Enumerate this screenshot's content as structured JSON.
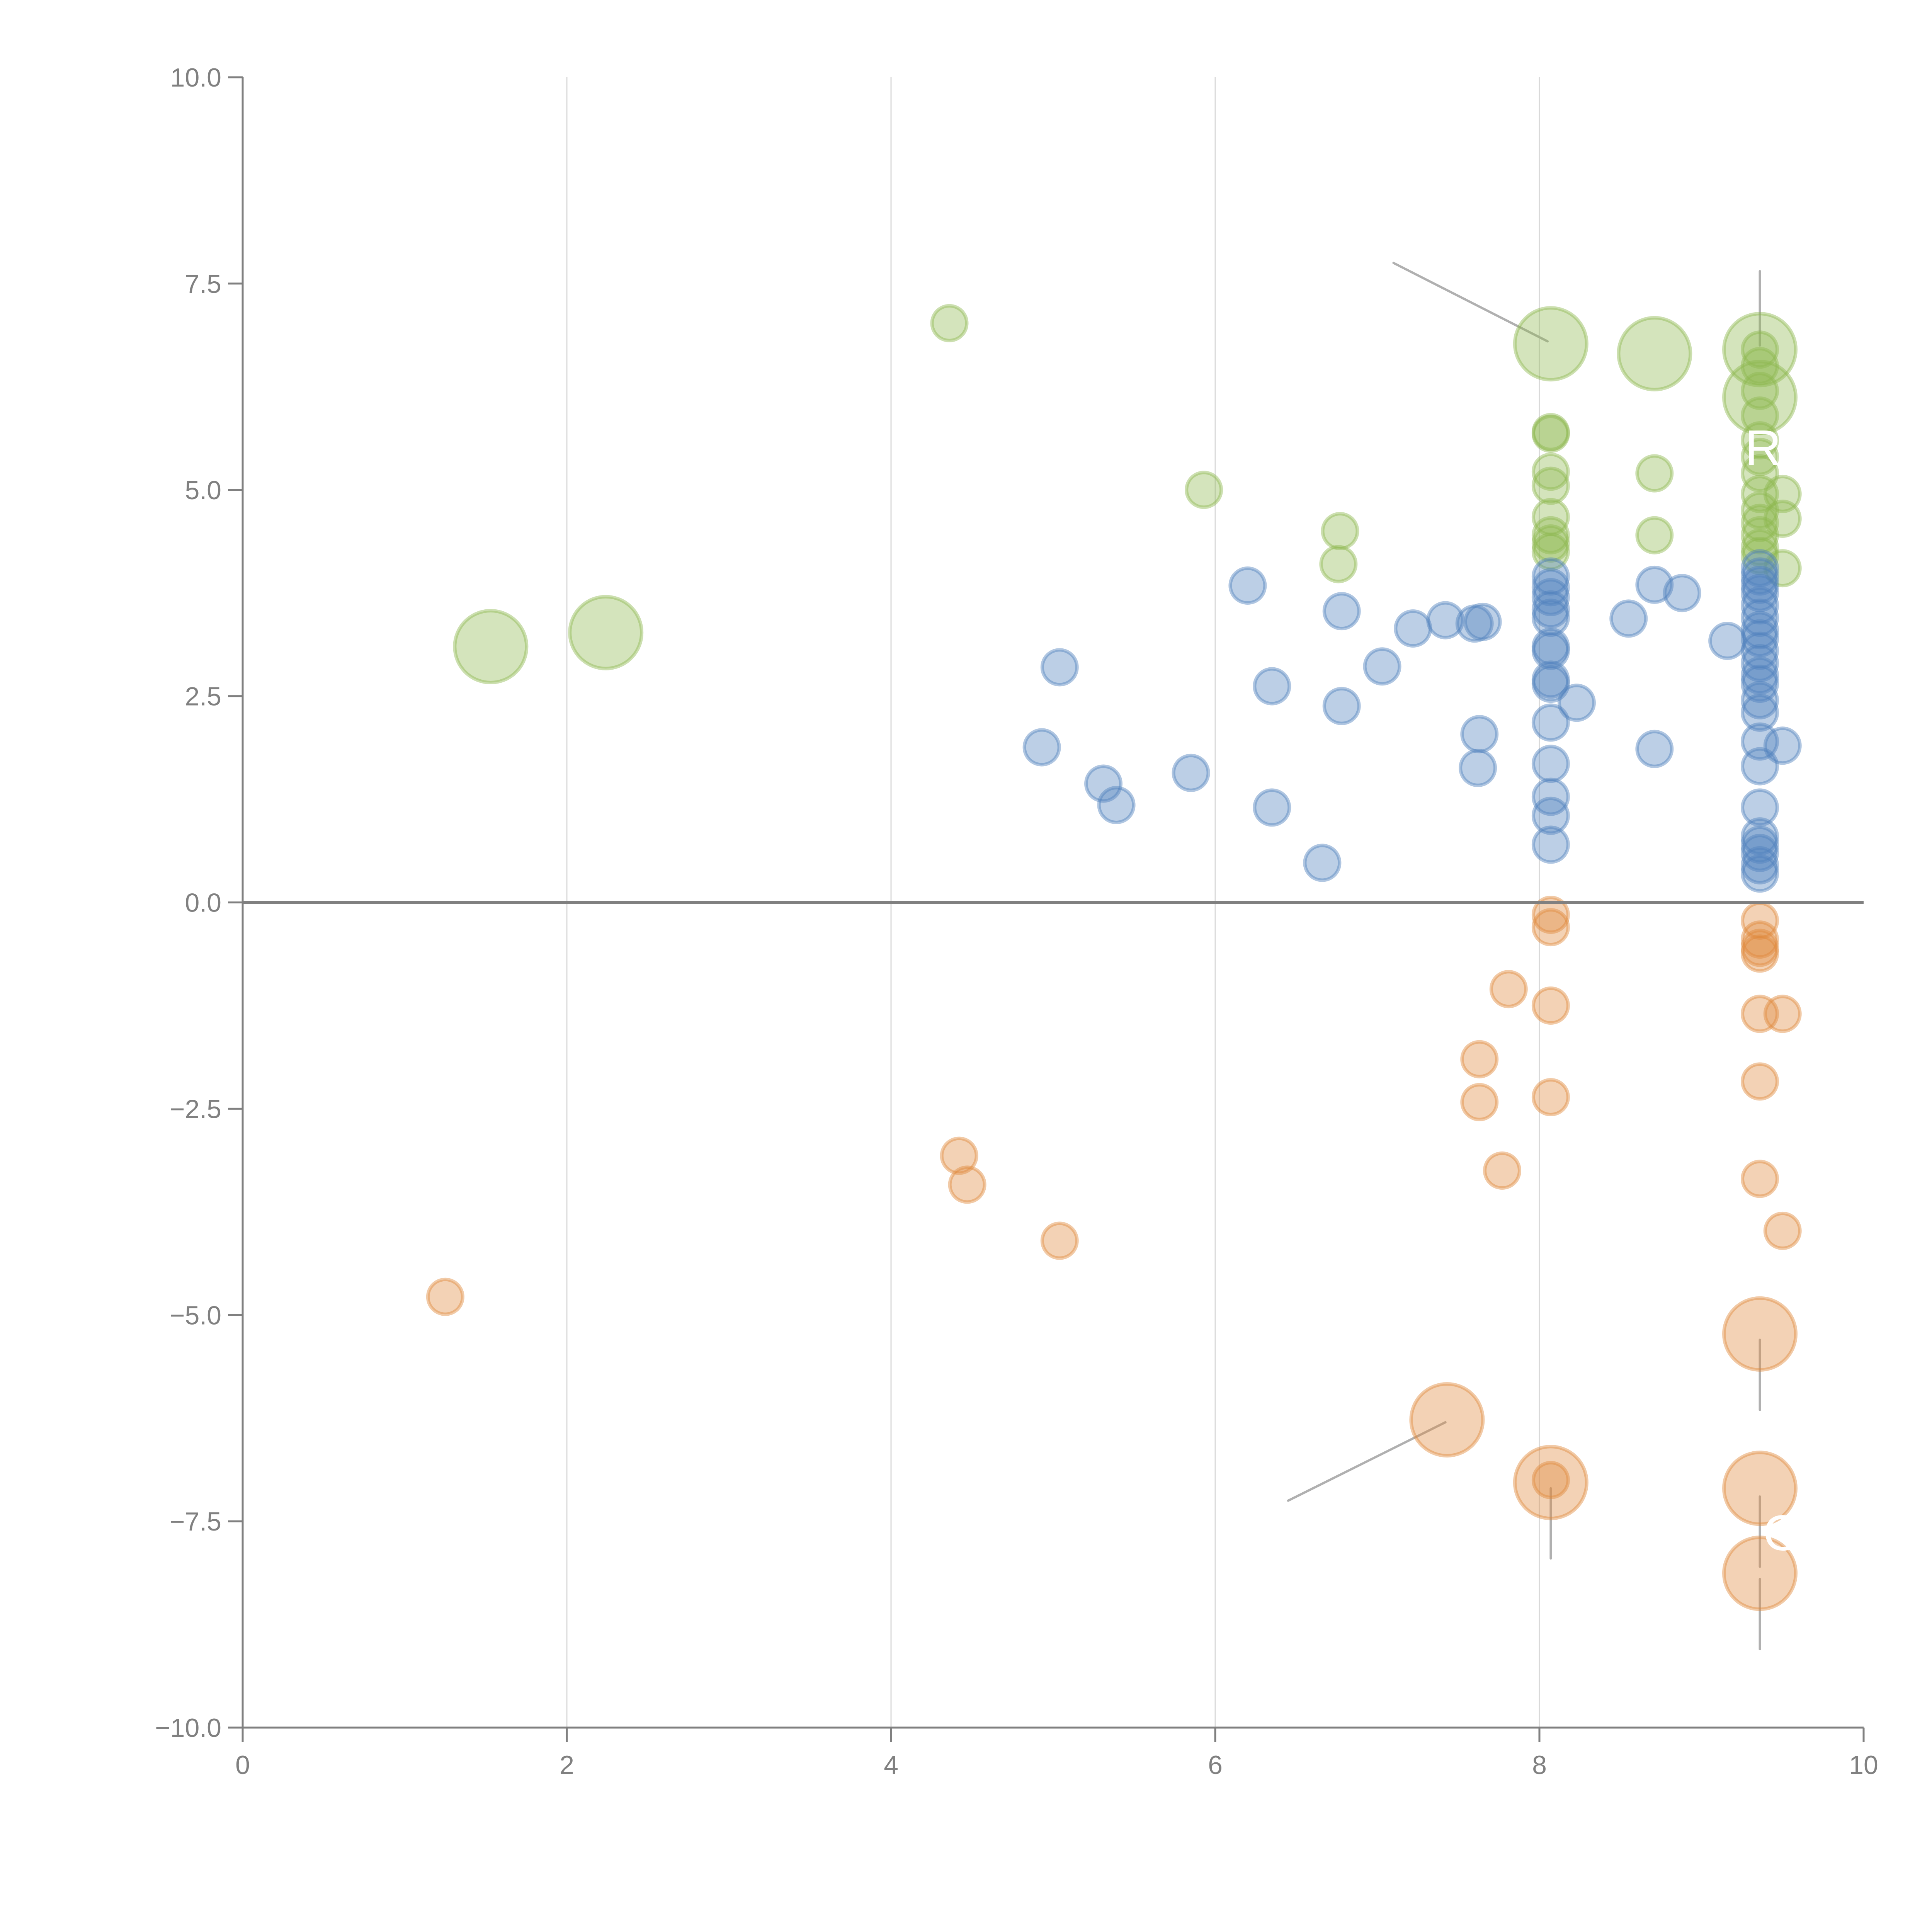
{
  "chart_data": {
    "type": "scatter",
    "title": "",
    "xlabel": "",
    "ylabel": "",
    "xlim": [
      0,
      10
    ],
    "ylim": [
      -10,
      10
    ],
    "x_ticks": [
      "0",
      "2",
      "4",
      "6",
      "8",
      "10"
    ],
    "y_ticks": [
      "−10.0",
      "−7.5",
      "−5.0",
      "−2.5",
      "0.0",
      "2.5",
      "5.0",
      "7.5",
      "10.0"
    ],
    "x_tick_values": [
      0,
      2,
      4,
      6,
      8,
      10
    ],
    "y_tick_values": [
      -10,
      -7.5,
      -5,
      -2.5,
      0,
      2.5,
      5,
      7.5,
      10
    ],
    "grid": "vertical",
    "zero_line": true,
    "colors": {
      "blue": "#4f81bd",
      "orange": "#e08a3c",
      "green": "#8fb74f",
      "axis": "#808080",
      "connector": "#b0b0b0"
    },
    "series": [
      {
        "name": "green",
        "color": "#8fb74f",
        "points": [
          [
            1.53,
            3.1,
            2
          ],
          [
            2.24,
            3.27,
            2
          ],
          [
            4.36,
            7.02,
            1
          ],
          [
            5.93,
            5.0,
            1
          ],
          [
            6.77,
            4.5,
            1
          ],
          [
            6.76,
            4.1,
            1
          ],
          [
            8.07,
            6.77,
            2
          ],
          [
            8.71,
            6.65,
            2
          ],
          [
            8.07,
            5.7,
            1
          ],
          [
            8.07,
            5.68,
            1
          ],
          [
            8.07,
            5.22,
            1
          ],
          [
            8.07,
            5.05,
            1
          ],
          [
            8.07,
            4.67,
            1
          ],
          [
            8.07,
            4.45,
            1
          ],
          [
            8.07,
            4.35,
            1
          ],
          [
            8.07,
            4.25,
            1
          ],
          [
            8.71,
            5.2,
            1
          ],
          [
            8.71,
            4.45,
            1
          ],
          [
            9.36,
            6.7,
            2
          ],
          [
            9.36,
            6.12,
            2
          ],
          [
            9.36,
            6.7,
            1
          ],
          [
            9.36,
            6.5,
            1
          ],
          [
            9.36,
            6.2,
            1
          ],
          [
            9.36,
            5.9,
            1
          ],
          [
            9.36,
            5.6,
            1
          ],
          [
            9.36,
            5.4,
            1
          ],
          [
            9.36,
            5.2,
            1
          ],
          [
            9.36,
            4.95,
            1
          ],
          [
            9.36,
            4.75,
            1
          ],
          [
            9.36,
            4.6,
            1
          ],
          [
            9.36,
            4.45,
            1
          ],
          [
            9.36,
            4.3,
            1
          ],
          [
            9.36,
            4.2,
            1
          ],
          [
            9.5,
            4.95,
            1
          ],
          [
            9.5,
            4.65,
            1
          ],
          [
            9.5,
            4.05,
            1
          ]
        ]
      },
      {
        "name": "blue",
        "color": "#4f81bd",
        "points": [
          [
            4.93,
            1.88,
            1
          ],
          [
            5.04,
            2.85,
            1
          ],
          [
            5.31,
            1.44,
            1
          ],
          [
            5.39,
            1.18,
            1
          ],
          [
            5.85,
            1.57,
            1
          ],
          [
            6.2,
            3.84,
            1
          ],
          [
            6.35,
            1.15,
            1
          ],
          [
            6.35,
            2.62,
            1
          ],
          [
            6.66,
            0.48,
            1
          ],
          [
            6.78,
            3.53,
            1
          ],
          [
            6.78,
            2.38,
            1
          ],
          [
            7.03,
            2.86,
            1
          ],
          [
            7.22,
            3.32,
            1
          ],
          [
            7.42,
            3.42,
            1
          ],
          [
            7.6,
            3.38,
            1
          ],
          [
            7.65,
            3.4,
            1
          ],
          [
            7.63,
            2.04,
            1
          ],
          [
            7.62,
            1.63,
            1
          ],
          [
            8.07,
            3.95,
            1
          ],
          [
            8.07,
            3.82,
            1
          ],
          [
            8.07,
            3.7,
            1
          ],
          [
            8.07,
            3.55,
            1
          ],
          [
            8.07,
            3.45,
            1
          ],
          [
            8.07,
            3.1,
            1
          ],
          [
            8.07,
            3.05,
            1
          ],
          [
            8.07,
            2.7,
            1
          ],
          [
            8.07,
            2.65,
            1
          ],
          [
            8.07,
            2.18,
            1
          ],
          [
            8.07,
            1.68,
            1
          ],
          [
            8.07,
            1.28,
            1
          ],
          [
            8.07,
            1.05,
            1
          ],
          [
            8.07,
            0.7,
            1
          ],
          [
            8.23,
            2.42,
            1
          ],
          [
            8.55,
            3.44,
            1
          ],
          [
            8.71,
            3.85,
            1
          ],
          [
            8.71,
            1.86,
            1
          ],
          [
            8.88,
            3.75,
            1
          ],
          [
            9.16,
            3.17,
            1
          ],
          [
            9.36,
            4.05,
            1
          ],
          [
            9.36,
            3.95,
            1
          ],
          [
            9.36,
            3.85,
            1
          ],
          [
            9.36,
            3.75,
            1
          ],
          [
            9.36,
            3.6,
            1
          ],
          [
            9.36,
            3.45,
            1
          ],
          [
            9.36,
            3.3,
            1
          ],
          [
            9.36,
            3.2,
            1
          ],
          [
            9.36,
            3.05,
            1
          ],
          [
            9.36,
            2.9,
            1
          ],
          [
            9.36,
            2.75,
            1
          ],
          [
            9.36,
            2.65,
            1
          ],
          [
            9.36,
            2.45,
            1
          ],
          [
            9.36,
            2.3,
            1
          ],
          [
            9.36,
            1.95,
            1
          ],
          [
            9.36,
            1.65,
            1
          ],
          [
            9.36,
            1.15,
            1
          ],
          [
            9.36,
            0.8,
            1
          ],
          [
            9.36,
            0.7,
            1
          ],
          [
            9.36,
            0.6,
            1
          ],
          [
            9.36,
            0.45,
            1
          ],
          [
            9.36,
            0.35,
            1
          ],
          [
            9.5,
            1.9,
            1
          ]
        ]
      },
      {
        "name": "orange",
        "color": "#e08a3c",
        "points": [
          [
            1.25,
            -4.78,
            1
          ],
          [
            4.42,
            -3.07,
            1
          ],
          [
            4.47,
            -3.42,
            1
          ],
          [
            5.04,
            -4.1,
            1
          ],
          [
            7.43,
            -6.27,
            2
          ],
          [
            7.63,
            -1.9,
            1
          ],
          [
            7.63,
            -2.42,
            1
          ],
          [
            7.77,
            -3.25,
            1
          ],
          [
            7.81,
            -1.05,
            1
          ],
          [
            8.07,
            -0.15,
            1
          ],
          [
            8.07,
            -0.3,
            1
          ],
          [
            8.07,
            -1.25,
            1
          ],
          [
            8.07,
            -2.36,
            1
          ],
          [
            8.07,
            -7.03,
            2
          ],
          [
            8.07,
            -7.0,
            1
          ],
          [
            9.36,
            -0.22,
            1
          ],
          [
            9.36,
            -0.45,
            1
          ],
          [
            9.36,
            -0.55,
            1
          ],
          [
            9.36,
            -0.62,
            1
          ],
          [
            9.36,
            -1.35,
            1
          ],
          [
            9.36,
            -2.17,
            1
          ],
          [
            9.36,
            -3.35,
            1
          ],
          [
            9.36,
            -5.23,
            2
          ],
          [
            9.36,
            -7.1,
            2
          ],
          [
            9.36,
            -8.13,
            2
          ],
          [
            9.5,
            -1.35,
            1
          ],
          [
            9.5,
            -3.98,
            1
          ]
        ]
      }
    ],
    "connectors": [
      {
        "from": [
          7.1,
          7.75
        ],
        "to": [
          8.05,
          6.8
        ]
      },
      {
        "from": [
          9.36,
          7.65
        ],
        "to": [
          9.36,
          6.75
        ]
      },
      {
        "from": [
          6.45,
          -7.25
        ],
        "to": [
          7.42,
          -6.3
        ]
      },
      {
        "from": [
          8.07,
          -7.1
        ],
        "to": [
          8.07,
          -7.95
        ]
      },
      {
        "from": [
          9.36,
          -5.3
        ],
        "to": [
          9.36,
          -6.15
        ]
      },
      {
        "from": [
          9.36,
          -7.2
        ],
        "to": [
          9.36,
          -8.05
        ]
      },
      {
        "from": [
          9.36,
          -8.2
        ],
        "to": [
          9.36,
          -9.05
        ]
      }
    ],
    "annotations": [
      {
        "text": "R",
        "x": 9.38,
        "y": 5.3
      },
      {
        "text": "G",
        "x": 9.5,
        "y": -7.85
      }
    ]
  }
}
